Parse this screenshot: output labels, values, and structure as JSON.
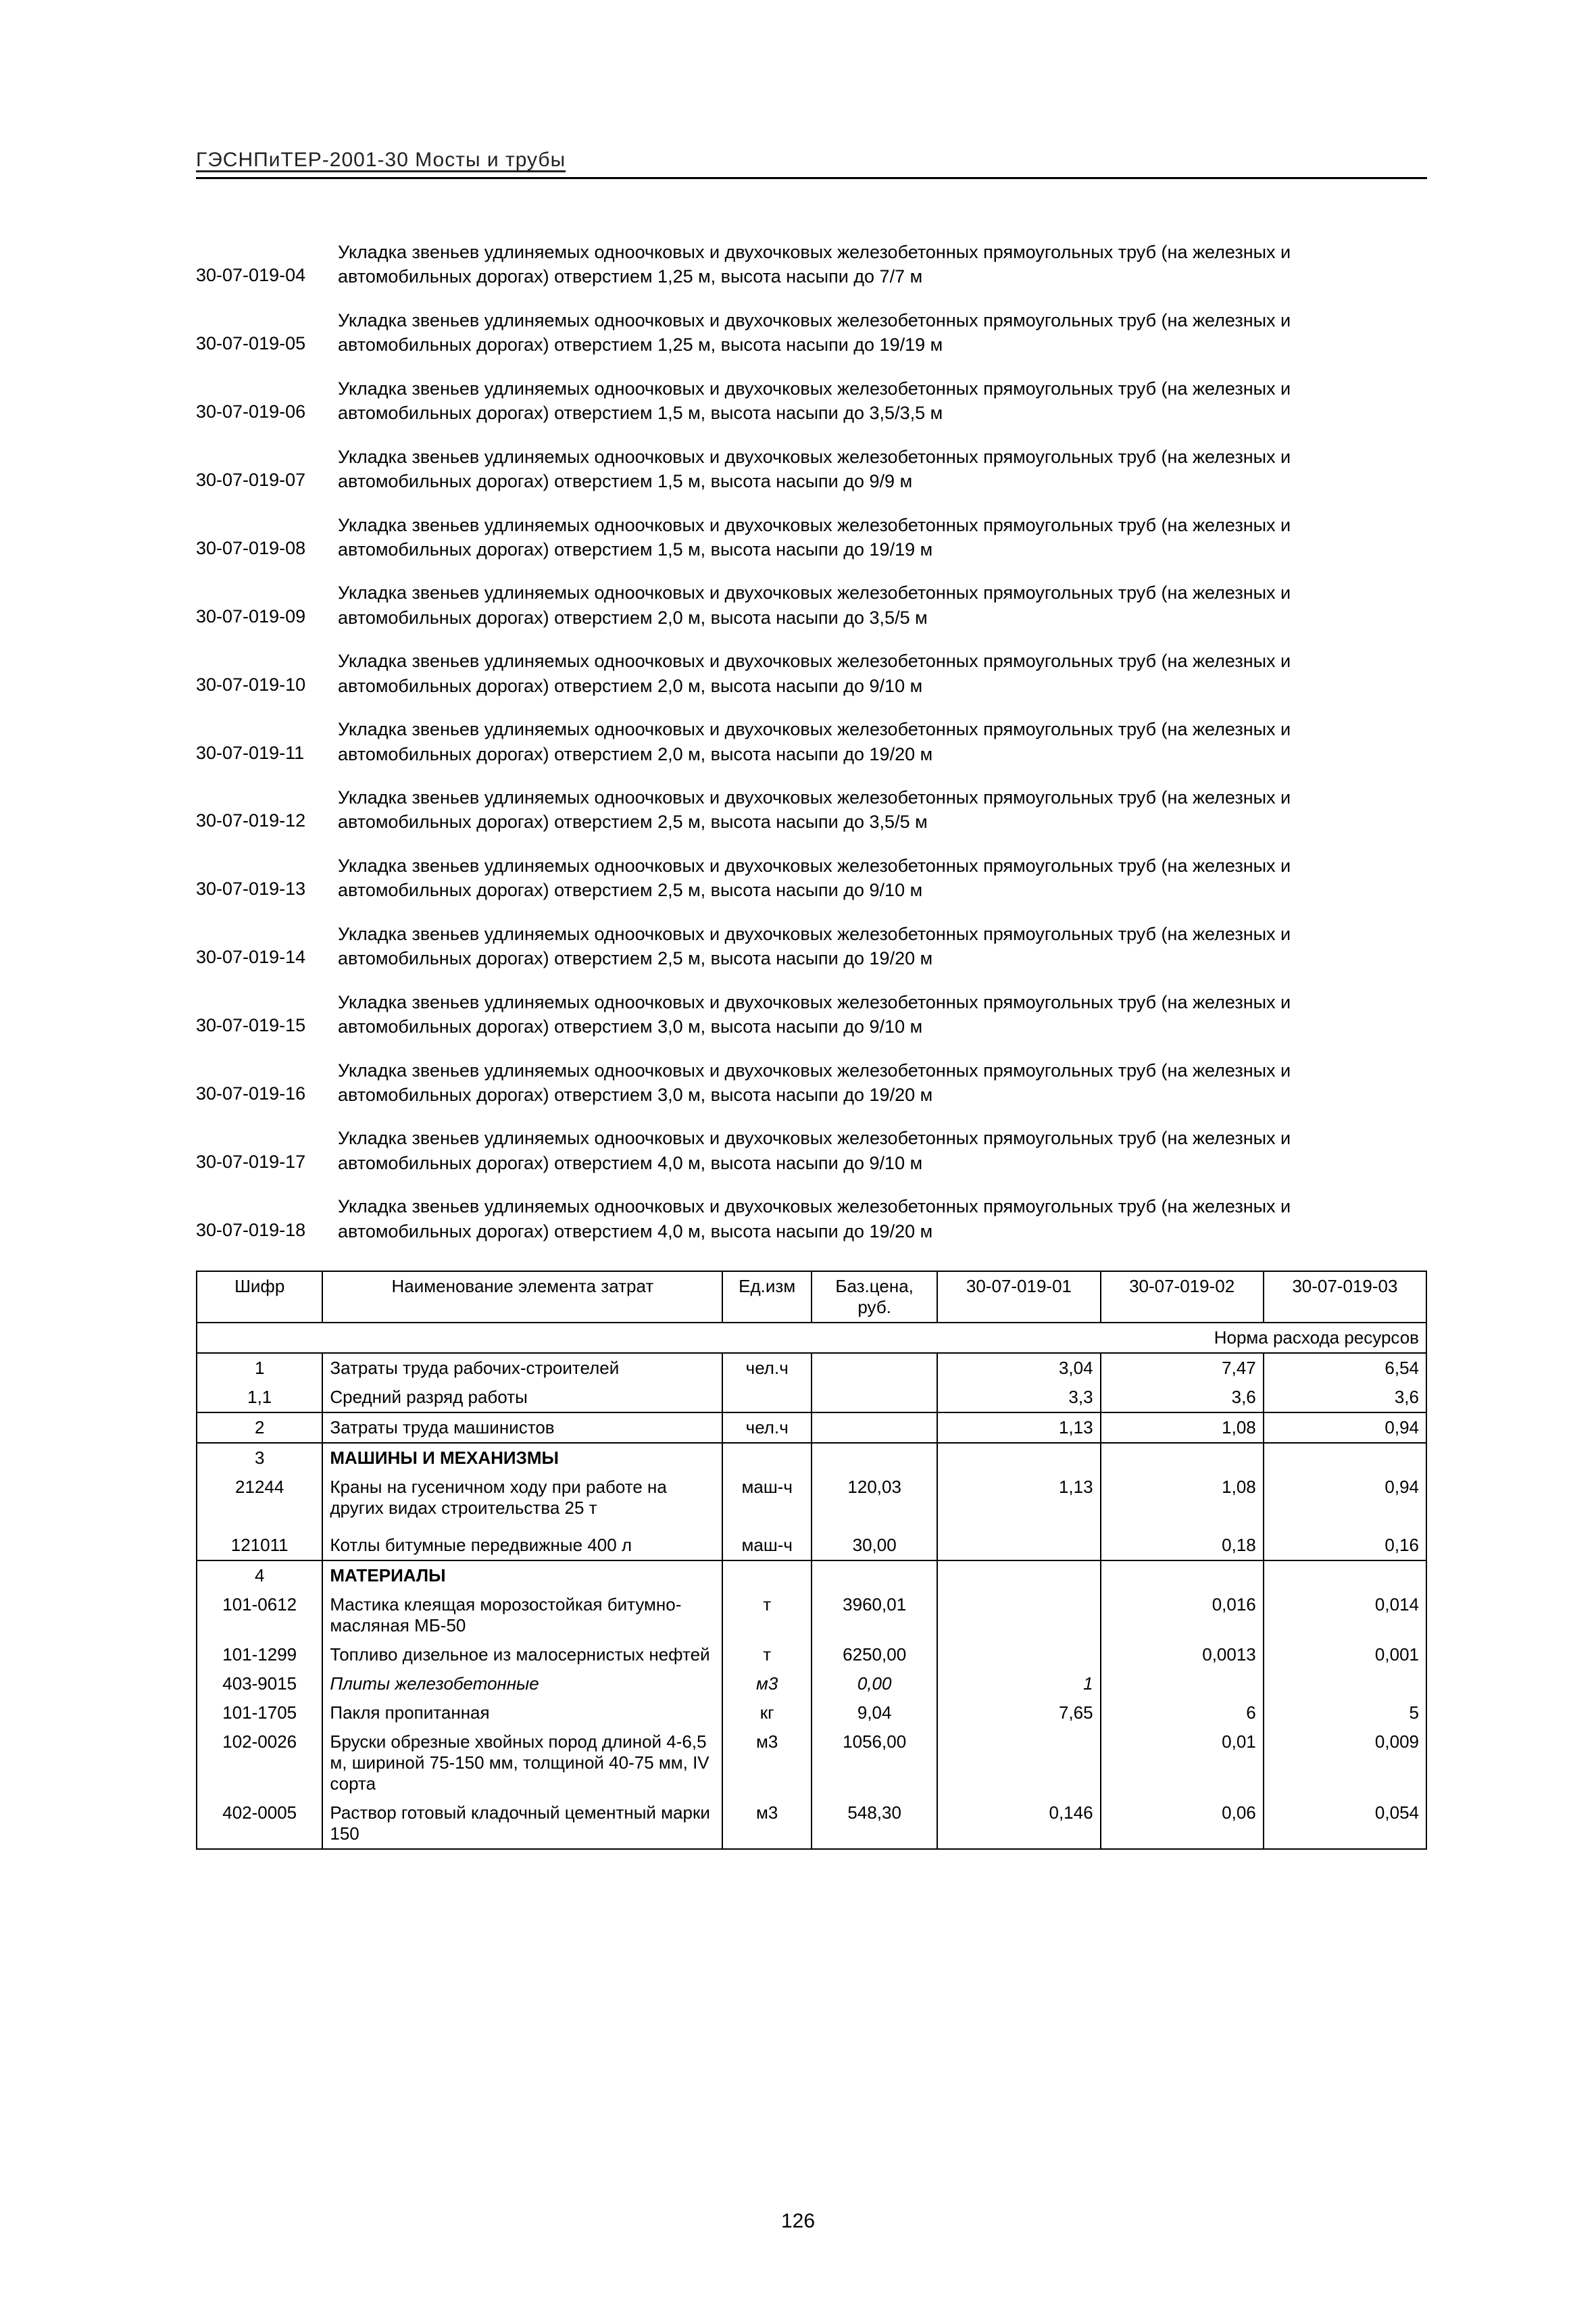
{
  "header": "ГЭСНПиТЕР-2001-30 Мосты и трубы",
  "page_number": "126",
  "entries": [
    {
      "code": "30-07-019-04",
      "text": "Укладка звеньев удлиняемых одноочковых и двухочковых железобетонных прямоугольных труб (на железных и автомобильных дорогах) отверстием 1,25 м, высота насыпи до 7/7 м"
    },
    {
      "code": "30-07-019-05",
      "text": "Укладка звеньев удлиняемых одноочковых и двухочковых железобетонных прямоугольных труб (на железных и автомобильных дорогах) отверстием 1,25 м, высота насыпи до 19/19 м"
    },
    {
      "code": "30-07-019-06",
      "text": "Укладка звеньев удлиняемых одноочковых и двухочковых железобетонных прямоугольных труб (на железных и автомобильных дорогах) отверстием 1,5 м, высота насыпи до 3,5/3,5 м"
    },
    {
      "code": "30-07-019-07",
      "text": "Укладка звеньев удлиняемых одноочковых и двухочковых железобетонных прямоугольных труб (на железных и автомобильных дорогах) отверстием 1,5 м, высота насыпи до 9/9 м"
    },
    {
      "code": "30-07-019-08",
      "text": "Укладка звеньев удлиняемых одноочковых и двухочковых железобетонных прямоугольных труб (на железных и автомобильных дорогах) отверстием 1,5 м, высота насыпи до 19/19 м"
    },
    {
      "code": "30-07-019-09",
      "text": "Укладка звеньев удлиняемых одноочковых и двухочковых железобетонных прямоугольных труб (на железных и автомобильных дорогах) отверстием 2,0 м, высота насыпи до 3,5/5 м"
    },
    {
      "code": "30-07-019-10",
      "text": "Укладка звеньев удлиняемых одноочковых и двухочковых железобетонных прямоугольных труб (на железных и автомобильных дорогах) отверстием 2,0 м, высота насыпи до 9/10 м"
    },
    {
      "code": "30-07-019-11",
      "text": "Укладка звеньев удлиняемых одноочковых и двухочковых железобетонных прямоугольных труб (на железных и автомобильных дорогах) отверстием 2,0 м, высота насыпи до 19/20 м"
    },
    {
      "code": "30-07-019-12",
      "text": "Укладка звеньев удлиняемых одноочковых и двухочковых железобетонных прямоугольных труб (на железных и автомобильных дорогах) отверстием 2,5 м, высота насыпи до 3,5/5 м"
    },
    {
      "code": "30-07-019-13",
      "text": "Укладка звеньев удлиняемых одноочковых и двухочковых железобетонных прямоугольных труб (на железных и автомобильных дорогах) отверстием 2,5 м, высота насыпи до 9/10 м"
    },
    {
      "code": "30-07-019-14",
      "text": "Укладка звеньев удлиняемых одноочковых и двухочковых железобетонных прямоугольных труб (на железных и автомобильных дорогах) отверстием 2,5 м, высота насыпи до 19/20 м"
    },
    {
      "code": "30-07-019-15",
      "text": "Укладка звеньев удлиняемых одноочковых и двухочковых железобетонных прямоугольных труб (на железных и автомобильных дорогах) отверстием 3,0 м, высота насыпи до 9/10 м"
    },
    {
      "code": "30-07-019-16",
      "text": "Укладка звеньев удлиняемых одноочковых и двухочковых железобетонных прямоугольных труб (на железных и автомобильных дорогах) отверстием 3,0 м, высота насыпи до 19/20 м"
    },
    {
      "code": "30-07-019-17",
      "text": "Укладка звеньев удлиняемых одноочковых и двухочковых железобетонных прямоугольных труб (на железных и автомобильных дорогах) отверстием 4,0 м, высота насыпи до 9/10 м"
    },
    {
      "code": "30-07-019-18",
      "text": "Укладка звеньев удлиняемых одноочковых и двухочковых железобетонных прямоугольных труб (на железных и автомобильных дорогах) отверстием 4,0 м, высота насыпи до 19/20 м"
    }
  ],
  "table": {
    "col_widths": [
      "170px",
      "540px",
      "120px",
      "170px",
      "220px",
      "220px",
      "220px"
    ],
    "head": {
      "c1": "Шифр",
      "c2": "Наименование элемента затрат",
      "c3": "Ед.изм",
      "c4": "Баз.цена, руб.",
      "c5": "30-07-019-01",
      "c6": "30-07-019-02",
      "c7": "30-07-019-03"
    },
    "spanhead": "Норма расхода ресурсов",
    "rows": [
      {
        "rule": true,
        "cells": [
          "1",
          "Затраты труда рабочих-строителей",
          "чел.ч",
          "",
          "3,04",
          "7,47",
          "6,54"
        ],
        "align": [
          "center",
          "left",
          "center",
          "num",
          "num",
          "num",
          "num"
        ]
      },
      {
        "cells": [
          "1,1",
          "Средний разряд работы",
          "",
          "",
          "3,3",
          "3,6",
          "3,6"
        ],
        "align": [
          "center",
          "left",
          "center",
          "num",
          "num",
          "num",
          "num"
        ]
      },
      {
        "rule": true,
        "cells": [
          "2",
          "Затраты труда машинистов",
          "чел.ч",
          "",
          "1,13",
          "1,08",
          "0,94"
        ],
        "align": [
          "center",
          "left",
          "center",
          "num",
          "num",
          "num",
          "num"
        ]
      },
      {
        "rule": true,
        "cells": [
          "3",
          "МАШИНЫ И МЕХАНИЗМЫ",
          "",
          "",
          "",
          "",
          ""
        ],
        "align": [
          "center",
          "left bold",
          "",
          "",
          "",
          "",
          ""
        ]
      },
      {
        "cells": [
          "21244",
          "Краны на гусеничном ходу при работе на других видах строительства 25 т",
          "маш-ч",
          "120,03",
          "1,13",
          "1,08",
          "0,94"
        ],
        "align": [
          "center",
          "left",
          "center",
          "center",
          "num",
          "num",
          "num"
        ]
      },
      {
        "cells": [
          "",
          "",
          "",
          "",
          "",
          "",
          ""
        ],
        "align": [
          "",
          "",
          "",
          "",
          "",
          "",
          ""
        ]
      },
      {
        "cells": [
          "121011",
          "Котлы битумные передвижные 400 л",
          "маш-ч",
          "30,00",
          "",
          "0,18",
          "0,16"
        ],
        "align": [
          "center",
          "left",
          "center",
          "center",
          "num",
          "num",
          "num"
        ]
      },
      {
        "rule": true,
        "cells": [
          "4",
          "МАТЕРИАЛЫ",
          "",
          "",
          "",
          "",
          ""
        ],
        "align": [
          "center",
          "left bold",
          "",
          "",
          "",
          "",
          ""
        ]
      },
      {
        "cells": [
          "101-0612",
          "Мастика клеящая морозостойкая битумно-масляная МБ-50",
          "т",
          "3960,01",
          "",
          "0,016",
          "0,014"
        ],
        "align": [
          "center",
          "left",
          "center",
          "center",
          "num",
          "num",
          "num"
        ]
      },
      {
        "cells": [
          "101-1299",
          "Топливо дизельное из малосернистых нефтей",
          "т",
          "6250,00",
          "",
          "0,0013",
          "0,001"
        ],
        "align": [
          "center",
          "left",
          "center",
          "center",
          "num",
          "num",
          "num"
        ]
      },
      {
        "cells": [
          "403-9015",
          "Плиты железобетонные",
          "м3",
          "0,00",
          "1",
          "",
          ""
        ],
        "align": [
          "center",
          "left italic",
          "center italic",
          "center italic",
          "num italic",
          "",
          ""
        ]
      },
      {
        "cells": [
          "101-1705",
          "Пакля пропитанная",
          "кг",
          "9,04",
          "7,65",
          "6",
          "5"
        ],
        "align": [
          "center",
          "left",
          "center",
          "center",
          "num",
          "num",
          "num"
        ]
      },
      {
        "cells": [
          "102-0026",
          "Бруски обрезные хвойных пород длиной 4-6,5 м, шириной 75-150 мм, толщиной 40-75 мм, IV сорта",
          "м3",
          "1056,00",
          "",
          "0,01",
          "0,009"
        ],
        "align": [
          "center",
          "left",
          "center",
          "center",
          "num",
          "num",
          "num"
        ]
      },
      {
        "bottom": true,
        "cells": [
          "402-0005",
          "Раствор готовый кладочный цементный марки 150",
          "м3",
          "548,30",
          "0,146",
          "0,06",
          "0,054"
        ],
        "align": [
          "center",
          "left",
          "center",
          "center",
          "num",
          "num",
          "num"
        ]
      }
    ]
  }
}
